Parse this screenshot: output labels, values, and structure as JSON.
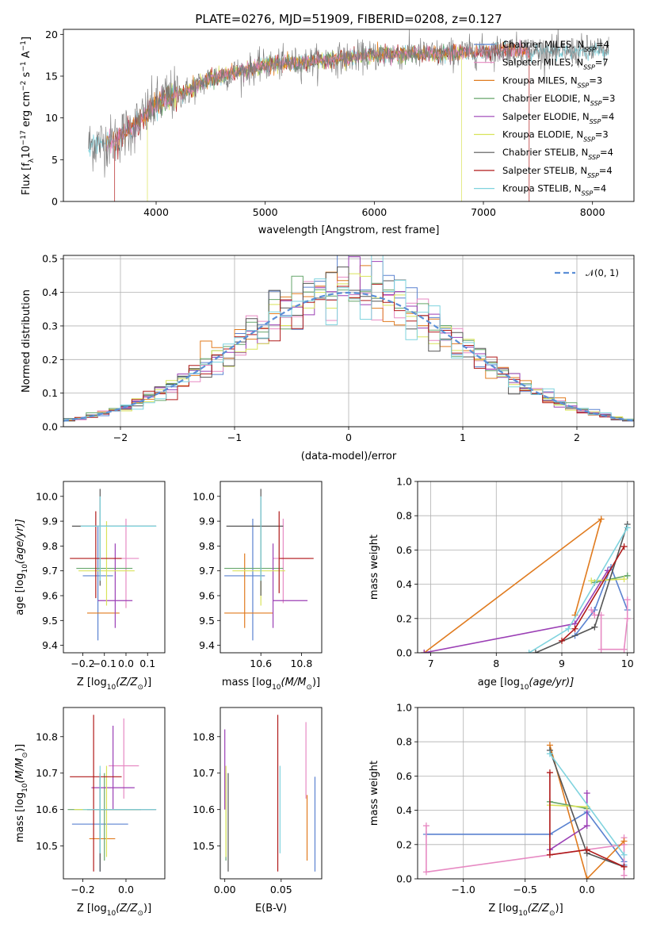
{
  "title": "PLATE=0276, MJD=51909, FIBERID=0208, z=0.127",
  "colors": {
    "Chabrier MILES": "#5a82d0",
    "Salpeter MILES": "#e78ac3",
    "Kroupa MILES": "#e07b1f",
    "Chabrier ELODIE": "#66a66b",
    "Salpeter ELODIE": "#9b3fb5",
    "Kroupa ELODIE": "#d9e35a",
    "Chabrier STELIB": "#555555",
    "Salpeter STELIB": "#b01a1a",
    "Kroupa STELIB": "#7fd3de",
    "gaussian": "#5b8fd6",
    "grid": "#b0b0b0"
  },
  "chart_data": [
    {
      "id": "spectrum",
      "type": "line",
      "title": "PLATE=0276, MJD=51909, FIBERID=0208, z=0.127",
      "xlabel": "wavelength [Angstrom, rest frame]",
      "ylabel_main": "Flux [f",
      "ylabel_sub": "λ",
      "ylabel_mid": "10",
      "ylabel_exp": "−17",
      "ylabel_rest": " erg cm",
      "ylabel_exp2": "−2",
      "ylabel_s": " s",
      "ylabel_exp3": "−1",
      "ylabel_A": " A",
      "ylabel_exp4": "−1",
      "ylabel_end": "]",
      "xlim": [
        3150,
        8380
      ],
      "ylim": [
        0,
        20.6
      ],
      "xticks": [
        4000,
        5000,
        6000,
        7000,
        8000
      ],
      "yticks": [
        0,
        5,
        10,
        15,
        20
      ],
      "grid": false,
      "continuum_anchor_points": {
        "x": [
          3380,
          3600,
          3800,
          3950,
          4100,
          4300,
          4500,
          4800,
          5000,
          5300,
          5600,
          6000,
          6300,
          6600,
          7000,
          7300,
          7600,
          8000,
          8150
        ],
        "y": [
          6.8,
          7.2,
          9.0,
          11.0,
          12.5,
          13.2,
          14.8,
          15.6,
          16.3,
          16.6,
          17.0,
          17.5,
          17.7,
          17.6,
          18.0,
          18.2,
          17.9,
          18.1,
          18.0
        ]
      },
      "legend_location": "upper right",
      "legend": [
        {
          "name": "Chabrier MILES",
          "n": "4"
        },
        {
          "name": "Salpeter MILES",
          "n": "7"
        },
        {
          "name": "Kroupa MILES",
          "n": "3"
        },
        {
          "name": "Chabrier ELODIE",
          "n": "3"
        },
        {
          "name": "Salpeter ELODIE",
          "n": "4"
        },
        {
          "name": "Kroupa ELODIE",
          "n": "3"
        },
        {
          "name": "Chabrier STELIB",
          "n": "4"
        },
        {
          "name": "Salpeter STELIB",
          "n": "4"
        },
        {
          "name": "Kroupa STELIB",
          "n": "4"
        }
      ],
      "legend_nssp_prefix": "N",
      "legend_nssp_sub": "SSP"
    },
    {
      "id": "residuals",
      "type": "line",
      "xlabel": "(data-model)/error",
      "ylabel": "Normed distribution",
      "xlim": [
        -2.5,
        2.5
      ],
      "ylim": [
        0,
        0.51
      ],
      "xticks": [
        -2,
        -1,
        0,
        1,
        2
      ],
      "xtick_labels": [
        "−2",
        "−1",
        "0",
        "1",
        "2"
      ],
      "yticks": [
        0.0,
        0.1,
        0.2,
        0.3,
        0.4,
        0.5
      ],
      "ytick_labels": [
        "0.0",
        "0.1",
        "0.2",
        "0.3",
        "0.4",
        "0.5"
      ],
      "grid": true,
      "gaussian_label": "𝒩(0, 1)",
      "legend_location": "upper right",
      "bin_width": 0.1
    },
    {
      "id": "age_vs_Z",
      "type": "scatter",
      "xlabel": "Z [log",
      "xlabel_sub": "10",
      "xlabel_rest": "(Z/Z",
      "xlabel_sun": "⊙",
      "xlabel_end": ")]",
      "ylabel": "age  [log",
      "ylabel_sub": "10",
      "ylabel_rest": "(age/yr)]",
      "xlim": [
        -0.29,
        0.18
      ],
      "ylim": [
        9.37,
        10.06
      ],
      "xticks": [
        -0.2,
        -0.1,
        0.0,
        0.1
      ],
      "xtick_labels": [
        "−0.2",
        "−0.1",
        "0.0",
        "0.1"
      ],
      "yticks": [
        9.4,
        9.5,
        9.6,
        9.7,
        9.8,
        9.9,
        10.0
      ],
      "ytick_labels": [
        "9.4",
        "9.5",
        "9.6",
        "9.7",
        "9.8",
        "9.9",
        "10.0"
      ],
      "points": [
        {
          "s": "Chabrier MILES",
          "x": -0.13,
          "xe": [
            0.07,
            0.07
          ],
          "y": 9.68,
          "ye": [
            0.26,
            0.2
          ]
        },
        {
          "s": "Salpeter MILES",
          "x": 0.0,
          "xe": [
            0.06,
            0.06
          ],
          "y": 9.75,
          "ye": [
            0.2,
            0.16
          ]
        },
        {
          "s": "Kroupa MILES",
          "x": -0.1,
          "xe": [
            0.08,
            0.07
          ],
          "y": 9.53,
          "ye": [
            0.0,
            0.0
          ]
        },
        {
          "s": "Chabrier ELODIE",
          "x": -0.1,
          "xe": [
            0.13,
            0.13
          ],
          "y": 9.71,
          "ye": [
            0.0,
            0.0
          ]
        },
        {
          "s": "Salpeter ELODIE",
          "x": -0.05,
          "xe": [
            0.08,
            0.08
          ],
          "y": 9.58,
          "ye": [
            0.11,
            0.23
          ]
        },
        {
          "s": "Kroupa ELODIE",
          "x": -0.09,
          "xe": [
            0.13,
            0.13
          ],
          "y": 9.7,
          "ye": [
            0.14,
            0.2
          ]
        },
        {
          "s": "Chabrier STELIB",
          "x": -0.12,
          "xe": [
            0.13,
            0.26
          ],
          "y": 9.88,
          "ye": [
            0.24,
            0.15
          ]
        },
        {
          "s": "Salpeter STELIB",
          "x": -0.14,
          "xe": [
            0.12,
            0.12
          ],
          "y": 9.75,
          "ye": [
            0.16,
            0.19
          ]
        },
        {
          "s": "Kroupa STELIB",
          "x": -0.12,
          "xe": [
            0.09,
            0.26
          ],
          "y": 9.88,
          "ye": [
            0.22,
            0.12
          ]
        }
      ]
    },
    {
      "id": "age_vs_mass",
      "type": "scatter",
      "xlabel": "mass [log",
      "xlabel_sub": "10",
      "xlabel_rest": "(M/M",
      "xlabel_sun": "⊙",
      "xlabel_end": ")]",
      "xlim": [
        10.4,
        10.9
      ],
      "ylim": [
        9.37,
        10.06
      ],
      "xticks": [
        10.6,
        10.8
      ],
      "xtick_labels": [
        "10.6",
        "10.8"
      ],
      "yticks": [
        9.4,
        9.5,
        9.6,
        9.7,
        9.8,
        9.9,
        10.0
      ],
      "ytick_labels": [
        "9.4",
        "9.5",
        "9.6",
        "9.7",
        "9.8",
        "9.9",
        "10.0"
      ],
      "points": [
        {
          "s": "Chabrier MILES",
          "x": 10.56,
          "xe": [
            0.14,
            0.06
          ],
          "y": 9.68,
          "ye": [
            0.26,
            0.23
          ]
        },
        {
          "s": "Salpeter MILES",
          "x": 10.71,
          "xe": [
            0.05,
            0.13
          ],
          "y": 9.75,
          "ye": [
            0.18,
            0.16
          ]
        },
        {
          "s": "Kroupa MILES",
          "x": 10.52,
          "xe": [
            0.1,
            0.14
          ],
          "y": 9.53,
          "ye": [
            0.06,
            0.24
          ]
        },
        {
          "s": "Chabrier ELODIE",
          "x": 10.6,
          "xe": [
            0.18,
            0.11
          ],
          "y": 9.71,
          "ye": [
            0.0,
            0.0
          ]
        },
        {
          "s": "Salpeter ELODIE",
          "x": 10.66,
          "xe": [
            0.0,
            0.17
          ],
          "y": 9.58,
          "ye": [
            0.11,
            0.23
          ]
        },
        {
          "s": "Kroupa ELODIE",
          "x": 10.6,
          "xe": [
            0.14,
            0.12
          ],
          "y": 9.7,
          "ye": [
            0.14,
            0.2
          ]
        },
        {
          "s": "Chabrier STELIB",
          "x": 10.6,
          "xe": [
            0.17,
            0.11
          ],
          "y": 9.88,
          "ye": [
            0.28,
            0.15
          ]
        },
        {
          "s": "Salpeter STELIB",
          "x": 10.69,
          "xe": [
            0.0,
            0.17
          ],
          "y": 9.75,
          "ye": [
            0.14,
            0.19
          ]
        },
        {
          "s": "Kroupa STELIB",
          "x": 10.6,
          "xe": [
            0.0,
            0.0
          ],
          "y": 9.88,
          "ye": [
            0.22,
            0.12
          ]
        }
      ]
    },
    {
      "id": "massweight_vs_age",
      "type": "line",
      "xlabel": "age  [log",
      "xlabel_sub": "10",
      "xlabel_rest": "(age/yr)]",
      "ylabel": "mass weight",
      "xlim": [
        6.8,
        10.1
      ],
      "ylim": [
        0,
        1.0
      ],
      "xticks": [
        7,
        8,
        9,
        10
      ],
      "xtick_labels": [
        "7",
        "8",
        "9",
        "10"
      ],
      "yticks": [
        0.0,
        0.2,
        0.4,
        0.6,
        0.8,
        1.0
      ],
      "ytick_labels": [
        "0.0",
        "0.2",
        "0.4",
        "0.6",
        "0.8",
        "1.0"
      ],
      "grid": true,
      "series": [
        {
          "s": "Chabrier MILES",
          "x": [
            9.2,
            9.5,
            9.75,
            10.0
          ],
          "y": [
            0.1,
            0.25,
            0.5,
            0.25
          ]
        },
        {
          "s": "Salpeter MILES",
          "x": [
            9.45,
            9.5,
            9.6,
            9.6,
            9.95,
            10.0,
            10.0
          ],
          "y": [
            0.25,
            0.22,
            0.22,
            0.02,
            0.02,
            0.2,
            0.31
          ]
        },
        {
          "s": "Kroupa MILES",
          "x": [
            9.2,
            9.6,
            6.9
          ],
          "y": [
            0.22,
            0.78,
            0.0
          ]
        },
        {
          "s": "Chabrier ELODIE",
          "x": [
            9.5,
            10.0
          ],
          "y": [
            0.41,
            0.45
          ]
        },
        {
          "s": "Salpeter ELODIE",
          "x": [
            6.9,
            9.2,
            9.7
          ],
          "y": [
            0.0,
            0.17,
            0.48
          ]
        },
        {
          "s": "Kroupa ELODIE",
          "x": [
            9.45,
            9.95
          ],
          "y": [
            0.42,
            0.43
          ]
        },
        {
          "s": "Chabrier STELIB",
          "x": [
            8.6,
            9.5,
            10.0
          ],
          "y": [
            0.0,
            0.15,
            0.75
          ]
        },
        {
          "s": "Salpeter STELIB",
          "x": [
            9.0,
            9.2,
            9.95
          ],
          "y": [
            0.07,
            0.14,
            0.62
          ]
        },
        {
          "s": "Kroupa STELIB",
          "x": [
            8.5,
            9.1,
            10.0
          ],
          "y": [
            0.0,
            0.14,
            0.73
          ]
        }
      ]
    },
    {
      "id": "mass_vs_Z",
      "type": "scatter",
      "xlabel": "Z [log",
      "xlabel_sub": "10",
      "xlabel_rest": "(Z/Z",
      "xlabel_sun": "⊙",
      "xlabel_end": ")]",
      "ylabel": "mass [log",
      "ylabel_sub": "10",
      "ylabel_rest": "(M/M",
      "ylabel_sun": "⊙",
      "ylabel_end": ")]",
      "xlim": [
        -0.29,
        0.18
      ],
      "ylim": [
        10.41,
        10.88
      ],
      "xticks": [
        -0.2,
        0.0
      ],
      "xtick_labels": [
        "−0.2",
        "0.0"
      ],
      "yticks": [
        10.5,
        10.6,
        10.7,
        10.8
      ],
      "ytick_labels": [
        "10.5",
        "10.6",
        "10.7",
        "10.8"
      ],
      "points": [
        {
          "s": "Chabrier MILES",
          "x": -0.12,
          "xe": [
            0.13,
            0.13
          ],
          "y": 10.56,
          "ye": [
            0.13,
            0.13
          ]
        },
        {
          "s": "Salpeter MILES",
          "x": -0.01,
          "xe": [
            0.07,
            0.07
          ],
          "y": 10.72,
          "ye": [
            0.09,
            0.13
          ]
        },
        {
          "s": "Kroupa MILES",
          "x": -0.11,
          "xe": [
            0.06,
            0.06
          ],
          "y": 10.52,
          "ye": [
            0.0,
            0.0
          ]
        },
        {
          "s": "Chabrier ELODIE",
          "x": -0.1,
          "xe": [
            0.17,
            0.17
          ],
          "y": 10.6,
          "ye": [
            0.14,
            0.1
          ]
        },
        {
          "s": "Salpeter ELODIE",
          "x": -0.06,
          "xe": [
            0.1,
            0.1
          ],
          "y": 10.66,
          "ye": [
            0.06,
            0.17
          ]
        },
        {
          "s": "Kroupa ELODIE",
          "x": -0.09,
          "xe": [
            0.15,
            0.15
          ],
          "y": 10.6,
          "ye": [
            0.13,
            0.12
          ]
        },
        {
          "s": "Chabrier STELIB",
          "x": -0.12,
          "xe": [
            0.06,
            0.26
          ],
          "y": 10.6,
          "ye": [
            0.17,
            0.1
          ]
        },
        {
          "s": "Salpeter STELIB",
          "x": -0.15,
          "xe": [
            0.11,
            0.13
          ],
          "y": 10.69,
          "ye": [
            0.26,
            0.17
          ]
        },
        {
          "s": "Kroupa STELIB",
          "x": -0.12,
          "xe": [
            0.08,
            0.26
          ],
          "y": 10.6,
          "ye": [
            0.12,
            0.12
          ]
        }
      ]
    },
    {
      "id": "mass_vs_EBV",
      "type": "scatter",
      "xlabel": "E(B-V)",
      "xlim": [
        -0.004,
        0.086
      ],
      "ylim": [
        10.41,
        10.88
      ],
      "xticks": [
        0.0,
        0.05
      ],
      "xtick_labels": [
        "0.00",
        "0.05"
      ],
      "yticks": [
        10.5,
        10.6,
        10.7,
        10.8
      ],
      "ytick_labels": [
        "10.5",
        "10.6",
        "10.7",
        "10.8"
      ],
      "points": [
        {
          "s": "Chabrier MILES",
          "x": 0.08,
          "y": 10.56,
          "ye": [
            0.13,
            0.13
          ]
        },
        {
          "s": "Salpeter MILES",
          "x": 0.072,
          "y": 10.72,
          "ye": [
            0.09,
            0.12
          ]
        },
        {
          "s": "Kroupa MILES",
          "x": 0.073,
          "y": 10.52,
          "ye": [
            0.06,
            0.12
          ]
        },
        {
          "s": "Chabrier ELODIE",
          "x": 0.001,
          "y": 10.6,
          "ye": [
            0.14,
            0.1
          ]
        },
        {
          "s": "Salpeter ELODIE",
          "x": 0.0,
          "y": 10.66,
          "ye": [
            0.06,
            0.16
          ]
        },
        {
          "s": "Kroupa ELODIE",
          "x": 0.001,
          "y": 10.6,
          "ye": [
            0.13,
            0.12
          ]
        },
        {
          "s": "Chabrier STELIB",
          "x": 0.003,
          "y": 10.6,
          "ye": [
            0.17,
            0.1
          ]
        },
        {
          "s": "Salpeter STELIB",
          "x": 0.047,
          "y": 10.69,
          "ye": [
            0.26,
            0.17
          ]
        },
        {
          "s": "Kroupa STELIB",
          "x": 0.049,
          "y": 10.6,
          "ye": [
            0.12,
            0.12
          ]
        }
      ]
    },
    {
      "id": "massweight_vs_Z",
      "type": "line",
      "xlabel": "Z [log",
      "xlabel_sub": "10",
      "xlabel_rest": "(Z/Z",
      "xlabel_sun": "⊙",
      "xlabel_end": ")]",
      "ylabel": "mass weight",
      "xlim": [
        -1.37,
        0.38
      ],
      "ylim": [
        0,
        1.0
      ],
      "xticks": [
        -1.0,
        -0.5,
        0.0
      ],
      "xtick_labels": [
        "−1.0",
        "−0.5",
        "0.0"
      ],
      "yticks": [
        0.0,
        0.2,
        0.4,
        0.6,
        0.8,
        1.0
      ],
      "ytick_labels": [
        "0.0",
        "0.2",
        "0.4",
        "0.6",
        "0.8",
        "1.0"
      ],
      "grid": true,
      "series": [
        {
          "s": "Chabrier MILES",
          "x": [
            -1.3,
            -0.3,
            0.0,
            0.3,
            0.3
          ],
          "y": [
            0.26,
            0.26,
            0.39,
            0.1,
            0.08
          ]
        },
        {
          "s": "Salpeter MILES",
          "x": [
            -1.3,
            -1.3,
            0.3,
            0.3,
            0.3
          ],
          "y": [
            0.31,
            0.04,
            0.2,
            0.02,
            0.24
          ]
        },
        {
          "s": "Kroupa MILES",
          "x": [
            -0.3,
            0.0,
            0.3
          ],
          "y": [
            0.78,
            0.0,
            0.22
          ]
        },
        {
          "s": "Chabrier ELODIE",
          "x": [
            -0.3,
            0.0
          ],
          "y": [
            0.45,
            0.41
          ]
        },
        {
          "s": "Salpeter ELODIE",
          "x": [
            -0.3,
            0.0,
            0.0
          ],
          "y": [
            0.17,
            0.31,
            0.5
          ]
        },
        {
          "s": "Kroupa ELODIE",
          "x": [
            -0.3,
            0.0
          ],
          "y": [
            0.43,
            0.42
          ]
        },
        {
          "s": "Chabrier STELIB",
          "x": [
            -0.3,
            0.0,
            0.3
          ],
          "y": [
            0.75,
            0.15,
            0.07
          ]
        },
        {
          "s": "Salpeter STELIB",
          "x": [
            -0.3,
            -0.3,
            0.0,
            0.3
          ],
          "y": [
            0.62,
            0.14,
            0.17,
            0.07
          ]
        },
        {
          "s": "Kroupa STELIB",
          "x": [
            -0.3,
            0.3
          ],
          "y": [
            0.73,
            0.14
          ]
        }
      ]
    }
  ]
}
